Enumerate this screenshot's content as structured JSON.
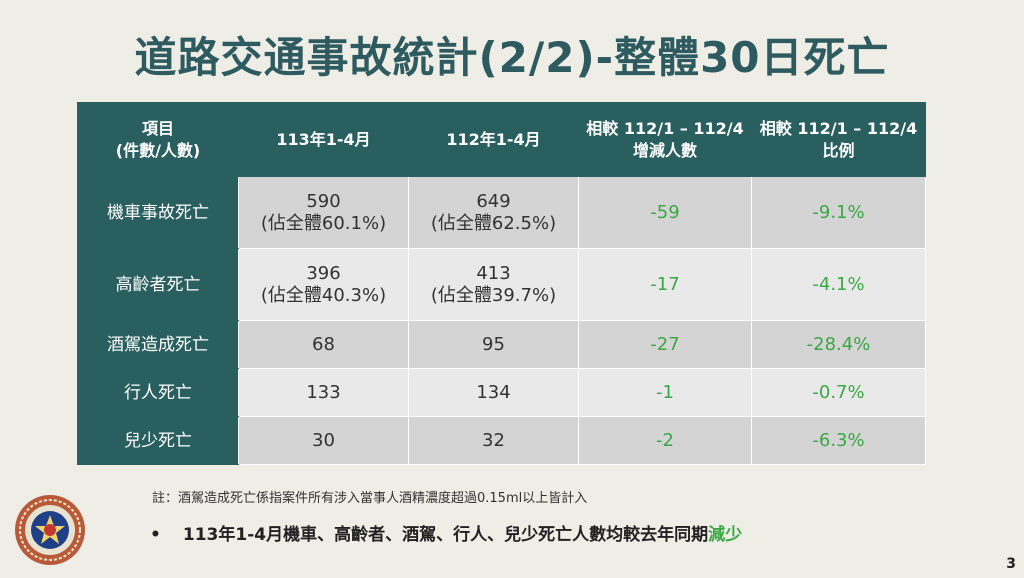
{
  "slide": {
    "title": "道路交通事故統計(2/2)-整體30日死亡",
    "page_number": "3"
  },
  "table": {
    "headers": [
      [
        "項目",
        "(件數/人數)"
      ],
      [
        "113年1-4月"
      ],
      [
        "112年1-4月"
      ],
      [
        "相較 112/1 – 112/4",
        "增減人數"
      ],
      [
        "相較 112/1 – 112/4",
        "比例"
      ]
    ],
    "rows": [
      {
        "label": "機車事故死亡",
        "y113": "590",
        "y113_share": "(佔全體60.1%)",
        "y112": "649",
        "y112_share": "(佔全體62.5%)",
        "diff": "-59",
        "ratio": "-9.1%"
      },
      {
        "label": "高齡者死亡",
        "y113": "396",
        "y113_share": "(佔全體40.3%)",
        "y112": "413",
        "y112_share": "(佔全體39.7%)",
        "diff": "-17",
        "ratio": "-4.1%"
      },
      {
        "label": "酒駕造成死亡",
        "y113": "68",
        "y113_share": "",
        "y112": "95",
        "y112_share": "",
        "diff": "-27",
        "ratio": "-28.4%"
      },
      {
        "label": "行人死亡",
        "y113": "133",
        "y113_share": "",
        "y112": "134",
        "y112_share": "",
        "diff": "-1",
        "ratio": "-0.7%"
      },
      {
        "label": "兒少死亡",
        "y113": "30",
        "y113_share": "",
        "y112": "32",
        "y112_share": "",
        "diff": "-2",
        "ratio": "-6.3%"
      }
    ]
  },
  "note": "註：酒駕造成死亡係指案件所有涉入當事人酒精濃度超過0.15ml以上皆計入",
  "bullet": {
    "symbol": "•",
    "text": "113年1-4月機車、高齡者、酒駕、行人、兒少死亡人數均較去年同期",
    "highlight": "減少"
  },
  "colors": {
    "header_bg": "#2a5f60",
    "title": "#2e5b5f",
    "decrease_green": "#3aa844",
    "background": "#eeede6"
  }
}
